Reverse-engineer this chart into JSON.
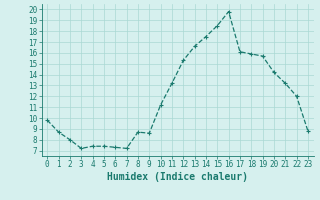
{
  "x": [
    0,
    1,
    2,
    3,
    4,
    5,
    6,
    7,
    8,
    9,
    10,
    11,
    12,
    13,
    14,
    15,
    16,
    17,
    18,
    19,
    20,
    21,
    22,
    23
  ],
  "y": [
    9.8,
    8.7,
    8.0,
    7.2,
    7.4,
    7.4,
    7.3,
    7.2,
    8.7,
    8.6,
    11.2,
    13.2,
    15.3,
    16.6,
    17.5,
    18.5,
    19.8,
    16.1,
    15.9,
    15.7,
    14.2,
    13.2,
    12.0,
    8.8
  ],
  "line_color": "#1a7a6e",
  "marker": "+",
  "background_color": "#d6f0ee",
  "grid_color": "#aad8d3",
  "xlabel": "Humidex (Indice chaleur)",
  "xlim": [
    -0.5,
    23.5
  ],
  "ylim": [
    6.5,
    20.5
  ],
  "yticks": [
    7,
    8,
    9,
    10,
    11,
    12,
    13,
    14,
    15,
    16,
    17,
    18,
    19,
    20
  ],
  "xticks": [
    0,
    1,
    2,
    3,
    4,
    5,
    6,
    7,
    8,
    9,
    10,
    11,
    12,
    13,
    14,
    15,
    16,
    17,
    18,
    19,
    20,
    21,
    22,
    23
  ],
  "tick_label_fontsize": 5.5,
  "xlabel_fontsize": 7,
  "linewidth": 0.9,
  "markersize": 3
}
